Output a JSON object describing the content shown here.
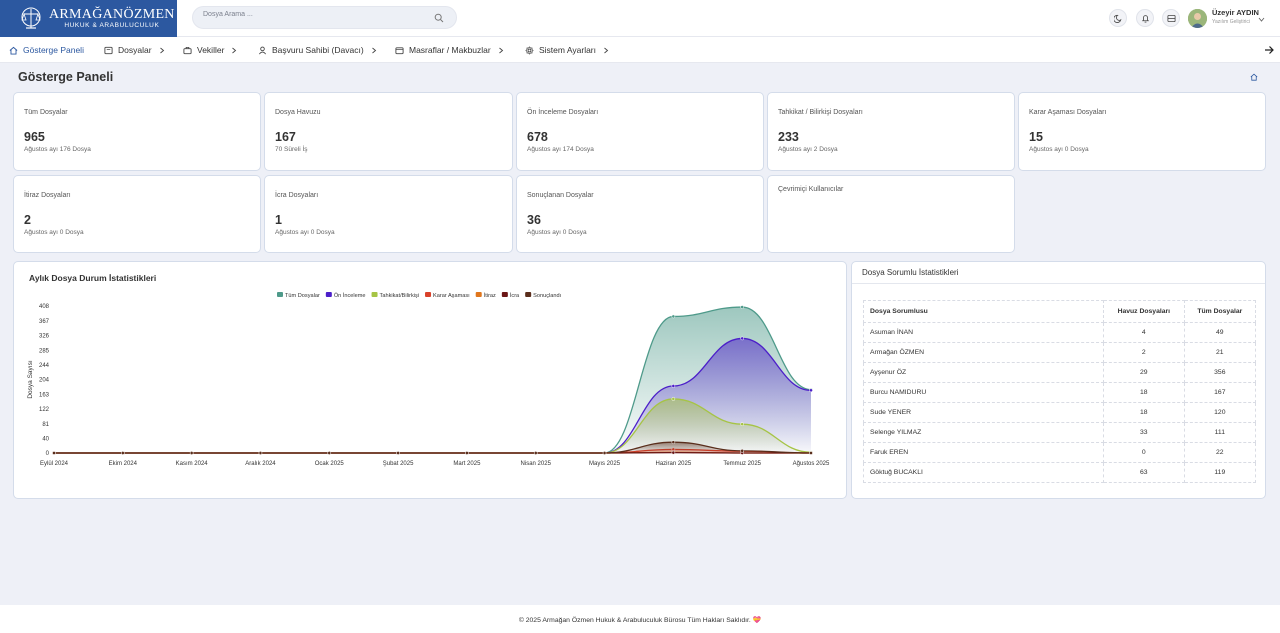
{
  "brand": {
    "title": "ARMAĞANÖZMEN",
    "subtitle": "HUKUK & ARABULUCULUK"
  },
  "search": {
    "placeholder": "Dosya Arama ..."
  },
  "user": {
    "name": "Üzeyir AYDIN",
    "role": "Yazılım Geliştirici"
  },
  "nav": [
    {
      "label": "Gösterge Paneli",
      "icon": "home-icon",
      "active": true
    },
    {
      "label": "Dosyalar",
      "icon": "folder-icon"
    },
    {
      "label": "Vekiller",
      "icon": "briefcase-icon"
    },
    {
      "label": "Başvuru Sahibi (Davacı)",
      "icon": "user-icon"
    },
    {
      "label": "Masraflar / Makbuzlar",
      "icon": "receipt-icon"
    },
    {
      "label": "Sistem Ayarları",
      "icon": "gear-icon"
    }
  ],
  "page": {
    "title": "Gösterge Paneli"
  },
  "cards": [
    {
      "label": "Tüm Dosyalar",
      "value": "965",
      "sub": "Ağustos ayı 176 Dosya"
    },
    {
      "label": "Dosya Havuzu",
      "value": "167",
      "sub": "70 Süreli İş"
    },
    {
      "label": "Ön İnceleme Dosyaları",
      "value": "678",
      "sub": "Ağustos ayı 174 Dosya"
    },
    {
      "label": "Tahkikat / Bilirkişi Dosyaları",
      "value": "233",
      "sub": "Ağustos ayı 2 Dosya"
    },
    {
      "label": "Karar Aşaması Dosyaları",
      "value": "15",
      "sub": "Ağustos ayı 0 Dosya"
    },
    {
      "label": "İtiraz Dosyaları",
      "value": "2",
      "sub": "Ağustos ayı 0 Dosya"
    },
    {
      "label": "İcra Dosyaları",
      "value": "1",
      "sub": "Ağustos ayı 0 Dosya"
    },
    {
      "label": "Sonuçlanan Dosyalar",
      "value": "36",
      "sub": "Ağustos ayı 0 Dosya"
    },
    {
      "label": "Çevrimiçi Kullanıcılar",
      "value": "",
      "sub": ""
    }
  ],
  "chart_title": "Aylık Dosya Durum İstatistikleri",
  "chart_data": {
    "type": "area",
    "title": "Aylık Dosya Durum İstatistikleri",
    "xlabel": "",
    "ylabel": "Dosya Sayısı",
    "ylim": [
      0,
      408
    ],
    "yticks": [
      0,
      40,
      81,
      122,
      163,
      204,
      244,
      285,
      326,
      367,
      408
    ],
    "legend_position": "top-center",
    "grid": false,
    "categories": [
      "Eylül 2024",
      "Ekim 2024",
      "Kasım 2024",
      "Aralık 2024",
      "Ocak 2025",
      "Şubat 2025",
      "Mart 2025",
      "Nisan 2025",
      "Mayıs 2025",
      "Haziran 2025",
      "Temmuz 2025",
      "Ağustos 2025"
    ],
    "series": [
      {
        "name": "Tüm Dosyalar",
        "color": "#4e9a8a",
        "values": [
          0,
          0,
          0,
          0,
          0,
          0,
          0,
          0,
          0,
          379,
          405,
          176
        ]
      },
      {
        "name": "Ön İnceleme",
        "color": "#4c1fc9",
        "values": [
          0,
          0,
          0,
          0,
          0,
          0,
          0,
          0,
          0,
          186,
          318,
          174
        ]
      },
      {
        "name": "Tahkikat/Bilirkişi",
        "color": "#a6c445",
        "values": [
          0,
          0,
          0,
          0,
          0,
          0,
          0,
          0,
          0,
          150,
          80,
          2
        ]
      },
      {
        "name": "Karar Aşaması",
        "color": "#d9412a",
        "values": [
          0,
          0,
          0,
          0,
          0,
          0,
          0,
          0,
          0,
          10,
          5,
          0
        ]
      },
      {
        "name": "İtiraz",
        "color": "#e0761c",
        "values": [
          0,
          0,
          0,
          0,
          0,
          0,
          0,
          0,
          0,
          2,
          0,
          0
        ]
      },
      {
        "name": "İcra",
        "color": "#6b1515",
        "values": [
          0,
          0,
          0,
          0,
          0,
          0,
          0,
          0,
          0,
          1,
          0,
          0
        ]
      },
      {
        "name": "Sonuçlandı",
        "color": "#5a2e1c",
        "values": [
          0,
          0,
          0,
          0,
          0,
          0,
          0,
          0,
          0,
          30,
          6,
          0
        ]
      }
    ]
  },
  "table": {
    "title": "Dosya Sorumlu İstatistikleri",
    "columns": [
      "Dosya Sorumlusu",
      "Havuz Dosyaları",
      "Tüm Dosyalar"
    ],
    "rows": [
      [
        "Asuman İNAN",
        "4",
        "49"
      ],
      [
        "Armağan ÖZMEN",
        "2",
        "21"
      ],
      [
        "Ayşenur ÖZ",
        "29",
        "356"
      ],
      [
        "Burcu NAMIDURU",
        "18",
        "167"
      ],
      [
        "Sude YENER",
        "18",
        "120"
      ],
      [
        "Selenge YILMAZ",
        "33",
        "111"
      ],
      [
        "Faruk EREN",
        "0",
        "22"
      ],
      [
        "Göktuğ BUCAKLI",
        "63",
        "119"
      ]
    ]
  },
  "footer": {
    "text": "© 2025 Armağan Özmen Hukuk & Arabuluculuk Bürosu Tüm Hakları Saklıdır. 💝"
  }
}
